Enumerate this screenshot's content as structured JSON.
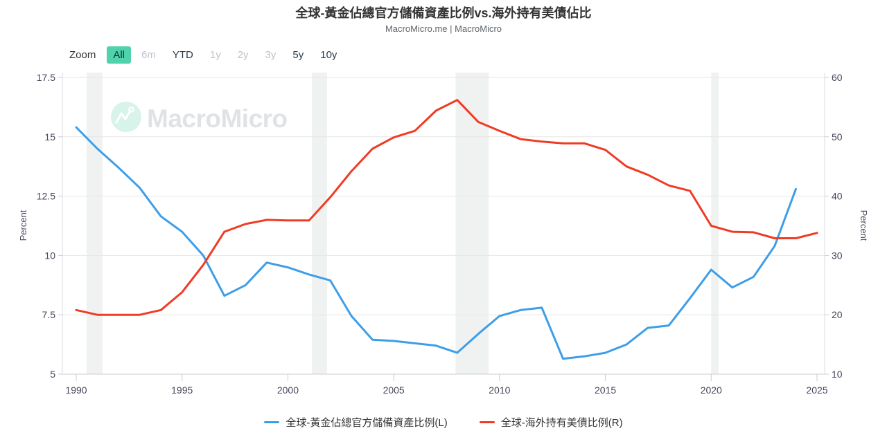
{
  "header": {
    "title": "全球-黃金佔總官方儲備資產比例vs.海外持有美債佔比",
    "subtitle": "MacroMicro.me | MacroMicro"
  },
  "toolbar": {
    "zoom_label": "Zoom",
    "buttons": [
      {
        "label": "All",
        "state": "active"
      },
      {
        "label": "6m",
        "state": "disabled"
      },
      {
        "label": "YTD",
        "state": "normal"
      },
      {
        "label": "1y",
        "state": "disabled"
      },
      {
        "label": "2y",
        "state": "disabled"
      },
      {
        "label": "3y",
        "state": "disabled"
      },
      {
        "label": "5y",
        "state": "normal"
      },
      {
        "label": "10y",
        "state": "normal"
      }
    ]
  },
  "watermark": {
    "brand": "MacroMicro"
  },
  "colors": {
    "gold_line": "#3D9EE8",
    "treasury_line": "#F03B24",
    "active_button_bg": "#50D2AB",
    "recession_band": "#ECEDEE",
    "gridline": "#E6E6E6",
    "axis_line": "#C9CDD2",
    "tick_text": "#46465C",
    "watermark_text": "#E0E3E6",
    "watermark_circle": "#D7F3EA"
  },
  "chart_data": {
    "type": "line",
    "title": "全球-黃金佔總官方儲備資產比例vs.海外持有美債佔比",
    "subtitle": "MacroMicro.me | MacroMicro",
    "grid": true,
    "legend_position": "bottom",
    "x_range": [
      1990,
      2025
    ],
    "x_ticks": [
      1990,
      1995,
      2000,
      2005,
      2010,
      2015,
      2020,
      2025
    ],
    "left_axis": {
      "label": "Percent",
      "range": [
        5,
        17.5
      ],
      "ticks": [
        "17.5",
        "15",
        "12.5",
        "10",
        "7.5",
        "5"
      ]
    },
    "right_axis": {
      "label": "Percent",
      "range": [
        10,
        60
      ],
      "ticks": [
        "60",
        "50",
        "40",
        "30",
        "20",
        "10"
      ]
    },
    "recession_bands": [
      [
        1990.49,
        1991.24
      ],
      [
        2001.13,
        2001.85
      ],
      [
        2007.92,
        2009.49
      ],
      [
        2020.0,
        2020.35
      ]
    ],
    "series": [
      {
        "name": "全球-黃金佔總官方儲備資產比例(L)",
        "id": "gold",
        "axis": "left",
        "color": "#3D9EE8",
        "year_start": 1990,
        "values": [
          15.4,
          14.5,
          13.7,
          12.85,
          11.65,
          11.0,
          10.0,
          8.3,
          8.75,
          9.7,
          9.5,
          9.2,
          8.95,
          7.45,
          6.45,
          6.4,
          6.3,
          6.2,
          5.9,
          6.7,
          7.45,
          7.7,
          7.8,
          5.65,
          5.75,
          5.9,
          6.25,
          6.95,
          7.05,
          8.2,
          9.4,
          8.65,
          9.1,
          10.4,
          12.8
        ]
      },
      {
        "name": "全球-海外持有美債比例(R)",
        "id": "treasury",
        "axis": "right",
        "color": "#F03B24",
        "year_start": 1990,
        "values": [
          20.8,
          20.0,
          20.0,
          20.0,
          20.8,
          23.8,
          28.4,
          34.0,
          35.3,
          36.0,
          35.9,
          35.9,
          39.8,
          44.2,
          48.0,
          49.9,
          51.0,
          54.4,
          56.2,
          52.5,
          51.0,
          49.6,
          49.2,
          48.9,
          48.9,
          47.8,
          45.0,
          43.6,
          41.8,
          40.9,
          35.0,
          34.0,
          33.9,
          32.9,
          32.9,
          33.8
        ]
      }
    ]
  }
}
